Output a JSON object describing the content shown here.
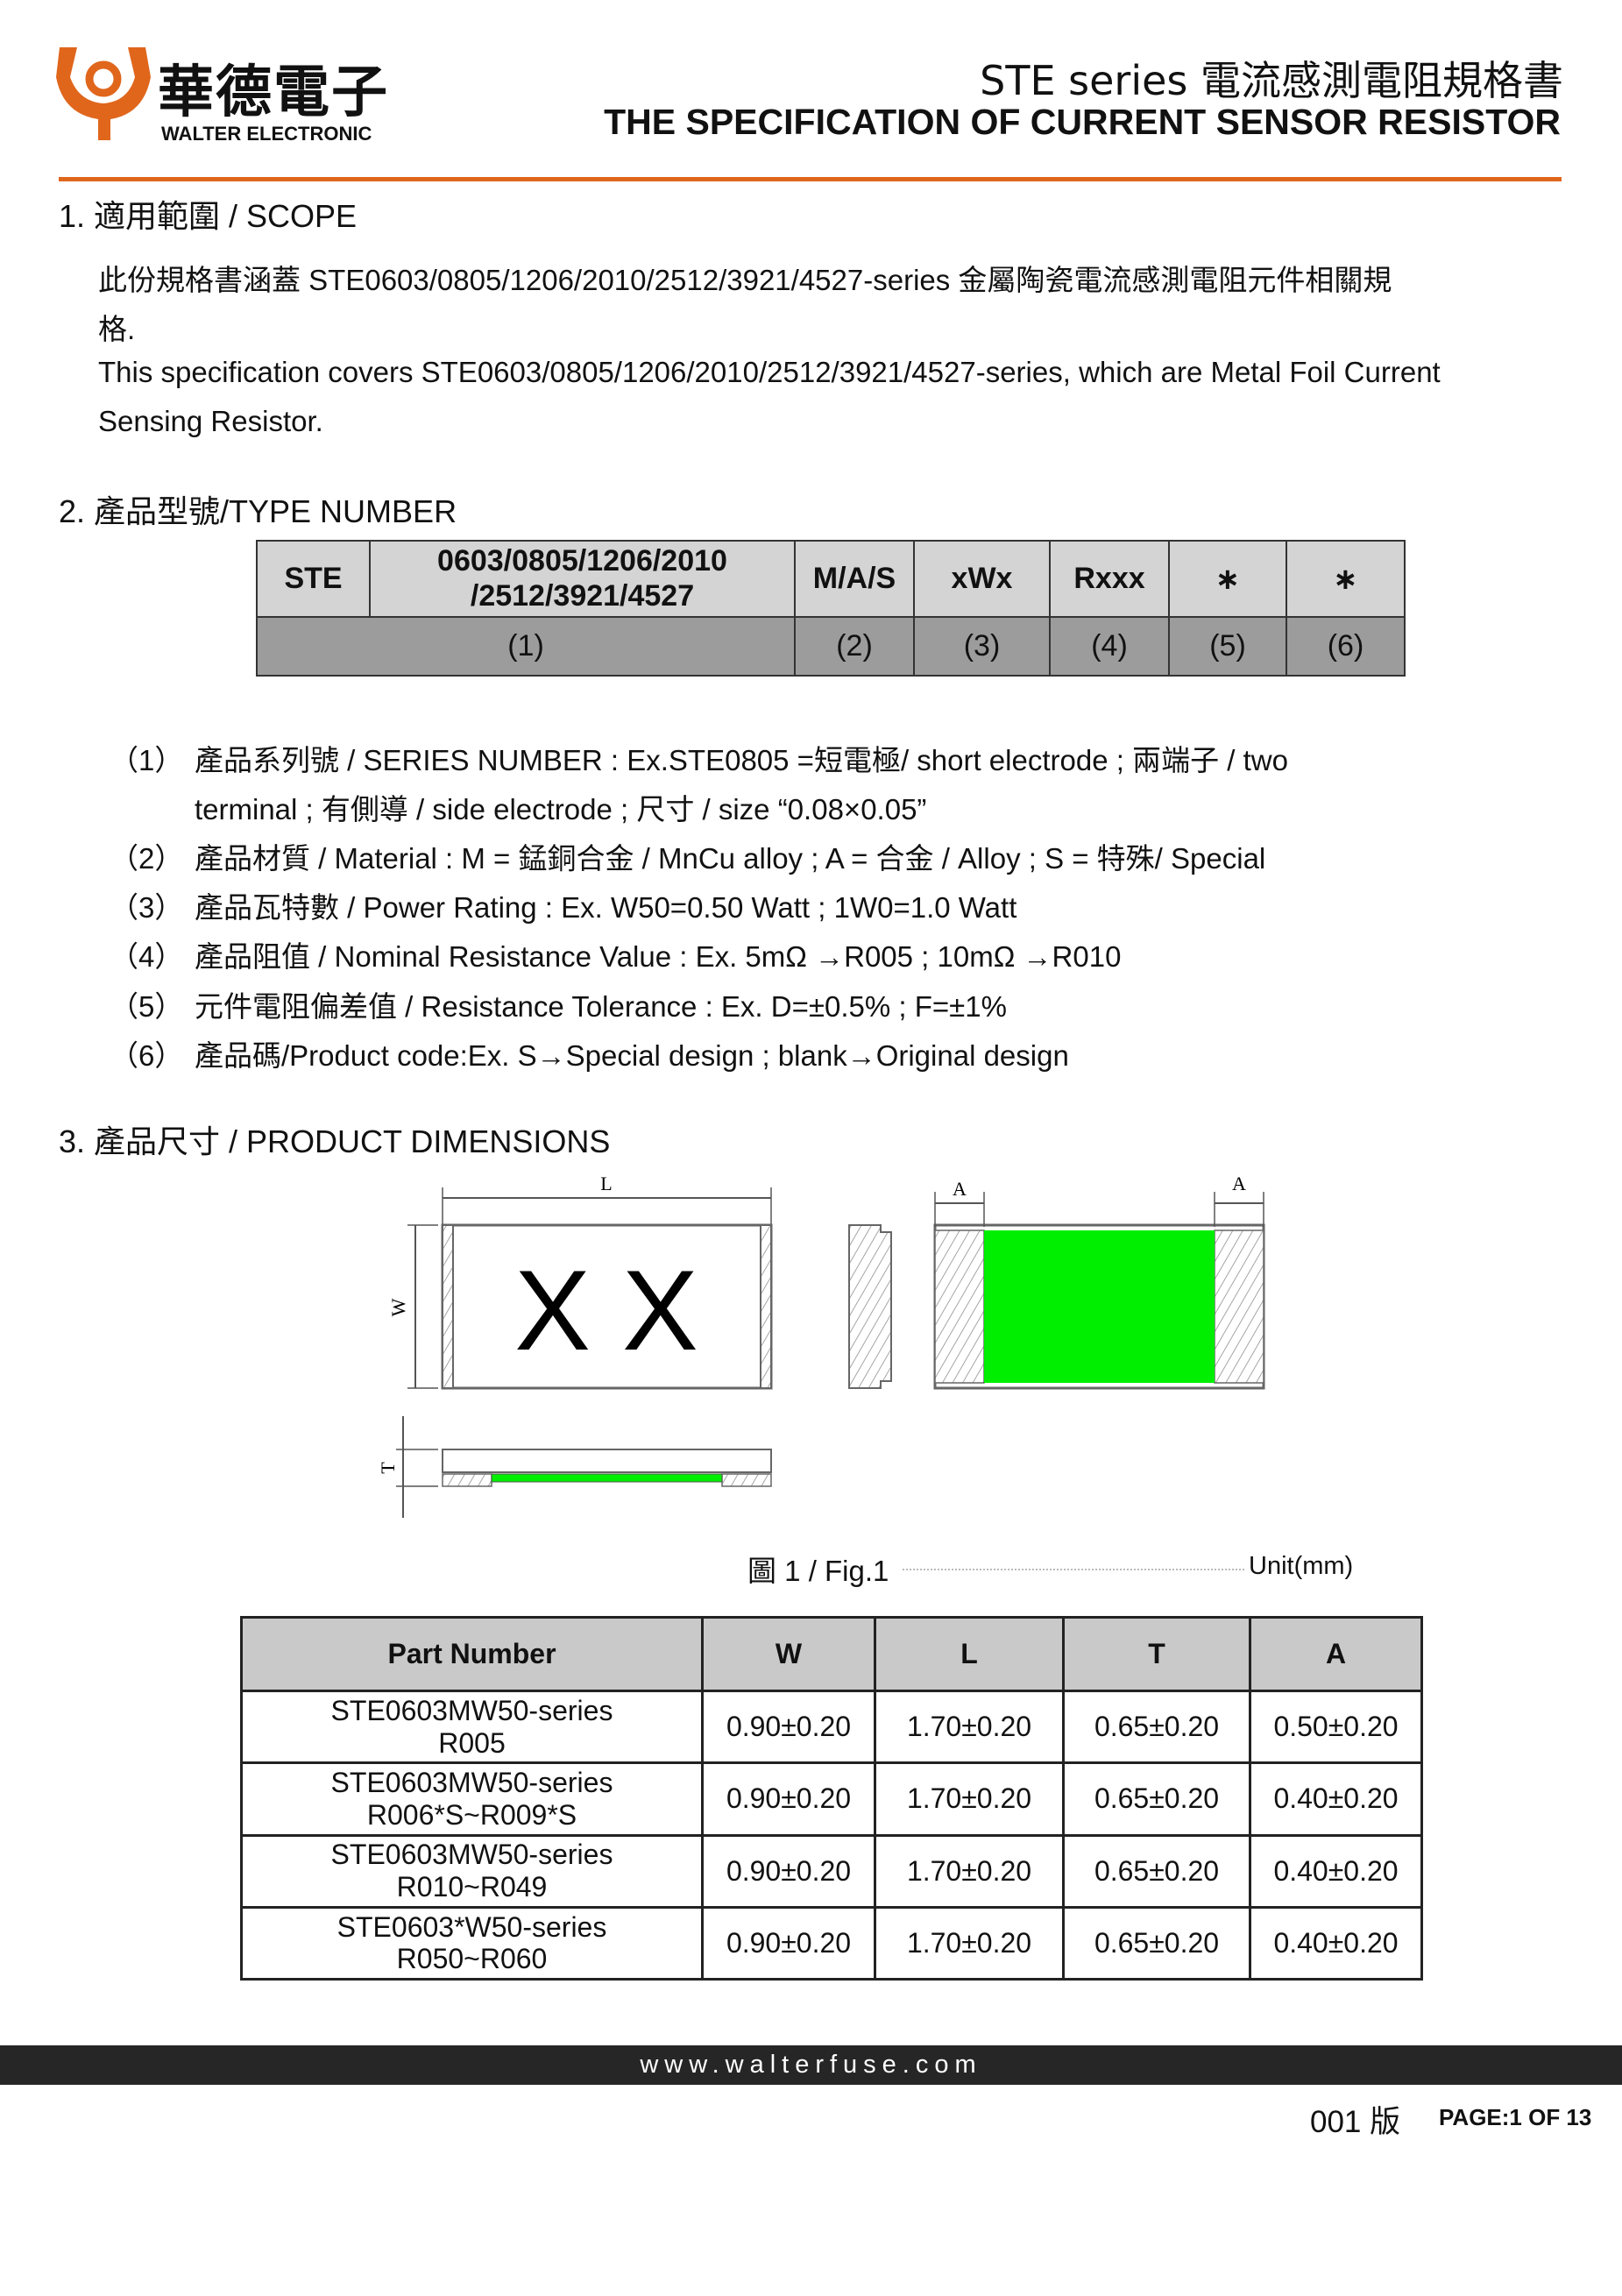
{
  "header": {
    "logo_cn": "華德電子",
    "logo_en": "WALTER ELECTRONIC",
    "title_cn": "STE series 電流感測電阻規格書",
    "title_en": "THE SPECIFICATION OF CURRENT SENSOR RESISTOR",
    "accent_color": "#e0661c"
  },
  "scope": {
    "heading": "1. 適用範圍 / SCOPE",
    "lines": [
      "此份規格書涵蓋 STE0603/0805/1206/2010/2512/3921/4527-series 金屬陶瓷電流感測電阻元件相關規",
      "格.",
      "This specification covers STE0603/0805/1206/2010/2512/3921/4527-series, which are Metal Foil Current",
      "Sensing Resistor."
    ]
  },
  "type_number": {
    "heading": "2. 產品型號/TYPE NUMBER",
    "header_cells": [
      "STE",
      "0603/0805/1206/2010",
      "/2512/3921/4527",
      "M/A/S",
      "xWx",
      "Rxxx",
      "∗",
      "∗"
    ],
    "number_cells": [
      "(1)",
      "(2)",
      "(3)",
      "(4)",
      "(5)",
      "(6)"
    ],
    "items": [
      {
        "num": "（1）",
        "text": "產品系列號 / SERIES NUMBER : Ex.STE0805 =短電極/ short electrode ; 兩端子 / two"
      },
      {
        "num": "",
        "text": "terminal ; 有側導 / side electrode ; 尺寸 / size “0.08×0.05”"
      },
      {
        "num": "（2）",
        "text": "產品材質 / Material : M = 錳銅合金 / MnCu alloy ; A =  合金 / Alloy ; S = 特殊/ Special"
      },
      {
        "num": "（3）",
        "text": "產品瓦特數 / Power Rating : Ex. W50=0.50 Watt ; 1W0=1.0 Watt"
      },
      {
        "num": "（4）",
        "text": "產品阻值 / Nominal Resistance Value : Ex. 5mΩ →R005 ; 10mΩ →R010"
      },
      {
        "num": "（5）",
        "text": "元件電阻偏差值 / Resistance Tolerance : Ex. D=±0.5% ; F=±1%"
      },
      {
        "num": "（6）",
        "text": "產品碼/Product code:Ex. S→Special design ; blank→Original design"
      }
    ]
  },
  "dimensions": {
    "heading": "3. 產品尺寸 / PRODUCT DIMENSIONS",
    "figure": {
      "label_L": "L",
      "label_W": "W",
      "label_T": "T",
      "label_A": "A",
      "marking": "X X",
      "caption": "圖 1 / Fig.1",
      "unit": "Unit(mm)",
      "electrode_color": "#00ee00"
    },
    "table": {
      "columns": [
        "Part Number",
        "W",
        "L",
        "T",
        "A"
      ],
      "rows": [
        {
          "part": "STE0603MW50-series",
          "part2": "R005",
          "W": "0.90±0.20",
          "L": "1.70±0.20",
          "T": "0.65±0.20",
          "A": "0.50±0.20"
        },
        {
          "part": "STE0603MW50-series",
          "part2": "R006*S~R009*S",
          "W": "0.90±0.20",
          "L": "1.70±0.20",
          "T": "0.65±0.20",
          "A": "0.40±0.20"
        },
        {
          "part": "STE0603MW50-series",
          "part2": "R010~R049",
          "W": "0.90±0.20",
          "L": "1.70±0.20",
          "T": "0.65±0.20",
          "A": "0.40±0.20"
        },
        {
          "part": "STE0603*W50-series",
          "part2": "R050~R060",
          "W": "0.90±0.20",
          "L": "1.70±0.20",
          "T": "0.65±0.20",
          "A": "0.40±0.20"
        }
      ]
    }
  },
  "footer": {
    "website": "www.walterfuse.com",
    "version": "001 版",
    "page": "PAGE:1 OF 13"
  }
}
